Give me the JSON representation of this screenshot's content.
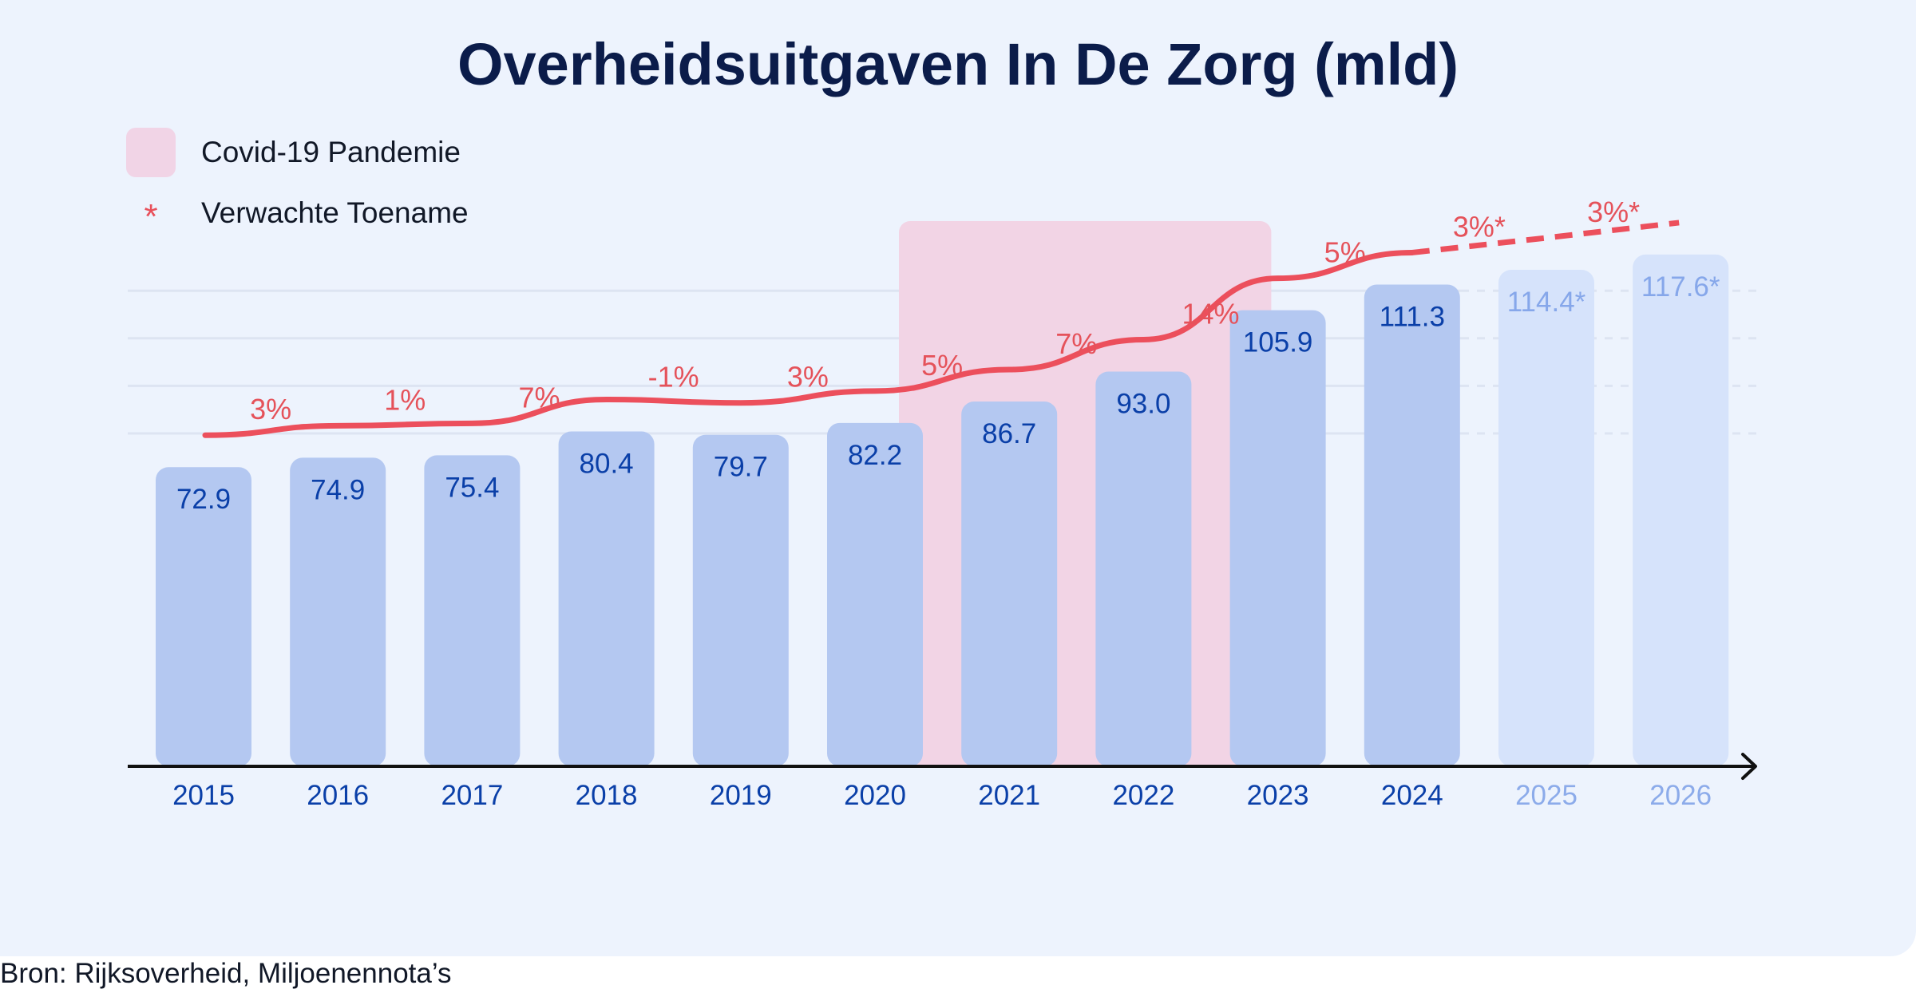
{
  "chart_data": {
    "type": "bar",
    "title": "Overheidsuitgaven In De Zorg (mld)",
    "categories": [
      "2015",
      "2016",
      "2017",
      "2018",
      "2019",
      "2020",
      "2021",
      "2022",
      "2023",
      "2024",
      "2025",
      "2026"
    ],
    "values": [
      72.9,
      74.9,
      75.4,
      80.4,
      79.7,
      82.2,
      86.7,
      93.0,
      105.9,
      111.3,
      114.4,
      117.6
    ],
    "value_labels": [
      "72.9",
      "74.9",
      "75.4",
      "80.4",
      "79.7",
      "82.2",
      "86.7",
      "93.0",
      "105.9",
      "111.3",
      "114.4*",
      "117.6*"
    ],
    "growth_labels": [
      "3%",
      "1%",
      "7%",
      "-1%",
      "3%",
      "5%",
      "7%",
      "14%",
      "5%",
      "3%*",
      "3%*"
    ],
    "projected_from_index": 10,
    "highlight": {
      "label": "Covid-19 Pandemie",
      "from": "2020",
      "to": "2022"
    },
    "legend": [
      {
        "label": "Covid-19 Pandemie",
        "marker": "pink-square"
      },
      {
        "label": "Verwachte Toename",
        "marker": "*"
      }
    ],
    "xlabel": "",
    "ylabel": "",
    "grid": true,
    "colors": {
      "bar": "#b4c8f1",
      "bar_projected": "#d6e3fb",
      "value_text": "#0a3fa8",
      "value_text_projected": "#86a7ea",
      "year_text": "#0a3fa8",
      "year_text_projected": "#8cabea",
      "growth_text": "#e5525a",
      "trend_line": "#ec4f5c",
      "highlight": "#f2d4e5",
      "grid": "#dde4f2",
      "axis": "#111111"
    }
  },
  "source": "Bron: Rijksoverheid, Miljoenennota’s"
}
